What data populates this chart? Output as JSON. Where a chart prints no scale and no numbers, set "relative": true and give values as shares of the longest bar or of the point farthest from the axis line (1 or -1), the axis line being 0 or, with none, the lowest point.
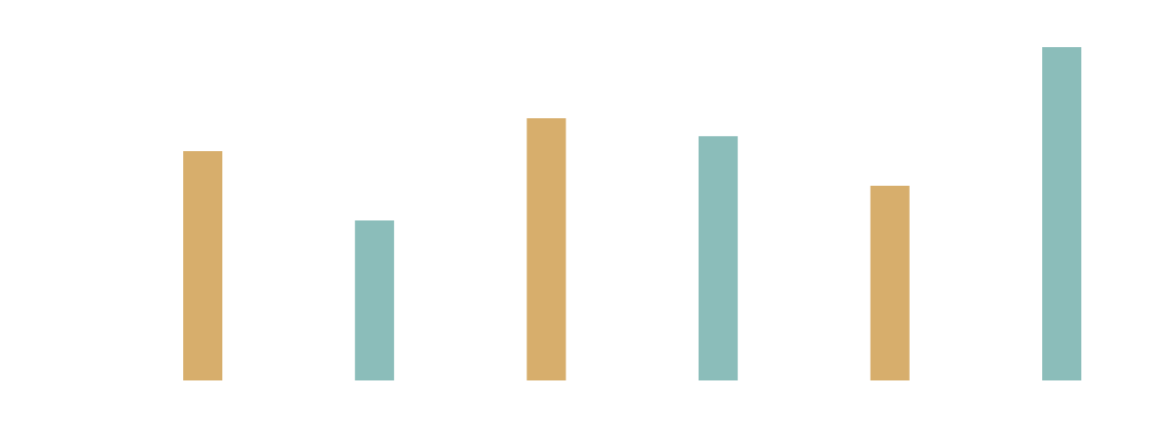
{
  "chart_data": {
    "type": "bar",
    "relative": true,
    "categories": [
      null,
      null,
      null,
      null,
      null,
      null
    ],
    "values": [
      0.688,
      0.48,
      0.787,
      0.733,
      0.584,
      1
    ],
    "colors": [
      "#d7ae6c",
      "#8bbdba",
      "#d7ae6c",
      "#8bbdba",
      "#d7ae6c",
      "#8bbdba"
    ]
  }
}
